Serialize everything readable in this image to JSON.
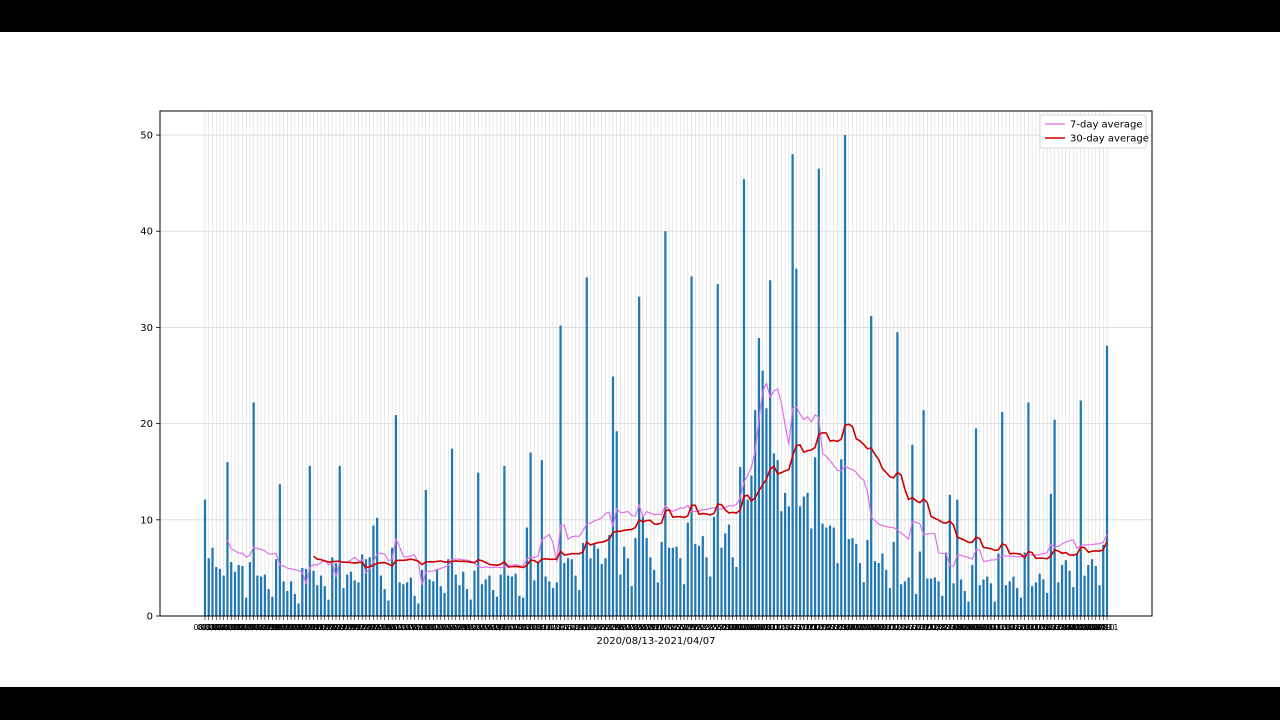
{
  "chart_data": {
    "type": "bar",
    "xlabel": "2020/08/13-2021/04/07",
    "ylabel": "",
    "ylim": [
      0,
      52.5
    ],
    "yticks": [
      0,
      10,
      20,
      30,
      40,
      50
    ],
    "grid": true,
    "legend_position": "top-right",
    "colors": {
      "bars": "#1f77b4",
      "ma7": "#e070e8",
      "ma30": "#cc0000",
      "grid": "#d9d9d9"
    },
    "start_date": "2020/08/13",
    "end_date": "2021/04/07",
    "values": [
      12.1,
      6,
      7.1,
      5.1,
      4.9,
      4.2,
      16,
      5.6,
      4.6,
      5.3,
      5.2,
      1.9,
      5.6,
      22.2,
      4.2,
      4.1,
      4.3,
      2.8,
      2,
      5.9,
      13.7,
      3.6,
      2.6,
      3.6,
      2.3,
      1.3,
      5,
      4.9,
      15.6,
      4.7,
      3.2,
      4.2,
      3.1,
      1.7,
      6.1,
      5.5,
      15.6,
      2.9,
      4.3,
      4.6,
      3.7,
      3.5,
      6.4,
      5.9,
      6.1,
      9.4,
      10.2,
      4.2,
      2.8,
      1.6,
      7.1,
      20.9,
      3.5,
      3.3,
      3.5,
      4,
      2.1,
      1.3,
      4.8,
      13.1,
      3.8,
      3.6,
      4.9,
      3.1,
      2.4,
      5.9,
      17.4,
      4.3,
      3.2,
      4.6,
      2.8,
      1.7,
      4.7,
      14.9,
      3.3,
      3.8,
      4.2,
      2.7,
      2,
      4.3,
      15.6,
      4.2,
      4.1,
      4.4,
      2.1,
      1.9,
      9.2,
      17,
      3.7,
      5.5,
      16.2,
      4.1,
      3.6,
      2.9,
      3.5,
      30.2,
      5.5,
      6,
      5.9,
      4.2,
      2.7,
      7.6,
      35.2,
      6,
      7.5,
      7,
      5.4,
      6,
      8.4,
      24.9,
      19.2,
      4.3,
      7.2,
      6,
      3.1,
      8.1,
      33.2,
      10.3,
      8.1,
      6.1,
      4.8,
      3.5,
      7.7,
      40,
      7.1,
      7.1,
      7.2,
      6,
      3.3,
      9.7,
      35.3,
      7.5,
      7.3,
      8.3,
      6.1,
      4.1,
      10.3,
      34.5,
      7.1,
      8.6,
      9.5,
      6.1,
      5.1,
      15.5,
      45.4,
      12.1,
      14.6,
      21.4,
      28.9,
      25.5,
      21.6,
      34.9,
      16.9,
      16.2,
      10.9,
      12.8,
      11.4,
      48,
      36.1,
      11.4,
      12.4,
      12.8,
      9.1,
      16.5,
      46.5,
      9.6,
      9.2,
      9.4,
      9.2,
      5.5,
      16.3,
      50,
      8,
      8.1,
      7.5,
      5.5,
      3.5,
      7.9,
      31.2,
      5.7,
      5.5,
      6.5,
      4.8,
      2.9,
      7.7,
      29.5,
      3.3,
      3.6,
      4,
      17.8,
      2.3,
      6.7,
      21.4,
      3.9,
      3.9,
      4,
      3.6,
      2.1,
      6.6,
      12.6,
      3.4,
      12.1,
      3.8,
      2.6,
      1.5,
      5.3,
      19.5,
      3.2,
      3.8,
      4.1,
      3.4,
      1.5,
      6.5,
      21.2,
      3.2,
      3.6,
      4.1,
      2.9,
      1.9,
      6.6,
      22.2,
      3.1,
      3.5,
      4.4,
      3.8,
      2.4,
      12.7,
      20.4,
      3.5,
      5.3,
      5.8,
      4.7,
      3,
      6.4,
      22.4,
      4.2,
      5.3,
      5.9,
      5.2,
      3.2,
      7.4,
      28.1
    ],
    "series": [
      {
        "name": "7-day average",
        "color": "#e070e8"
      },
      {
        "name": "30-day average",
        "color": "#cc0000"
      }
    ]
  }
}
